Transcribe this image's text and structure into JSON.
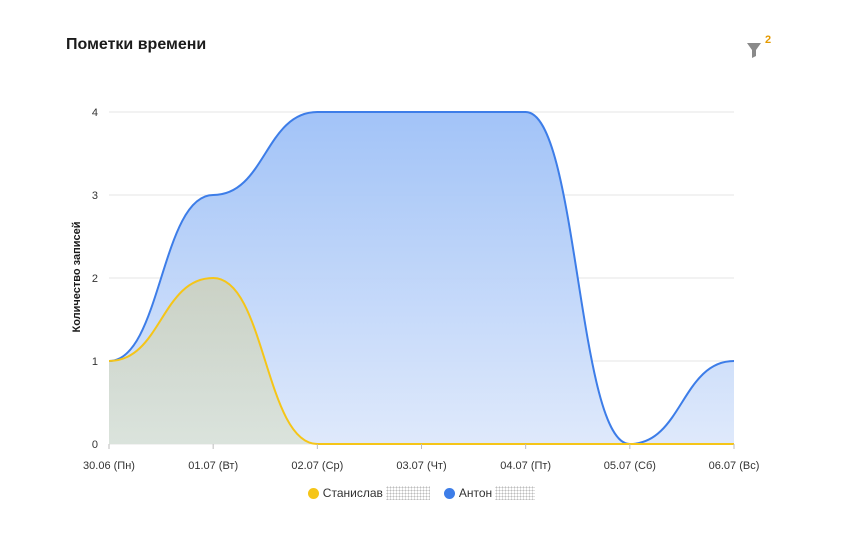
{
  "header": {
    "title": "Пометки времени",
    "filter_count": "2"
  },
  "colors": {
    "series_1": "#f5c518",
    "series_2": "#3d7de8",
    "grid": "#e6e6e6",
    "axis_text": "#333333"
  },
  "icons": {
    "filter": "filter-funnel-icon"
  },
  "chart_data": {
    "type": "area",
    "title": "",
    "xlabel": "",
    "ylabel": "Количество записей",
    "categories": [
      "30.06 (Пн)",
      "01.07 (Вт)",
      "02.07 (Ср)",
      "03.07 (Чт)",
      "04.07 (Пт)",
      "05.07 (Сб)",
      "06.07 (Вс)"
    ],
    "ylim": [
      0,
      4
    ],
    "yticks": [
      "0",
      "1",
      "2",
      "3",
      "4"
    ],
    "grid": true,
    "smooth": true,
    "legend_position": "bottom-center",
    "series": [
      {
        "name": "Станислав",
        "values": [
          1,
          2,
          0,
          0,
          0,
          0,
          0
        ]
      },
      {
        "name": "Антон",
        "values": [
          1,
          3,
          4,
          4,
          4,
          0,
          1
        ]
      }
    ]
  }
}
